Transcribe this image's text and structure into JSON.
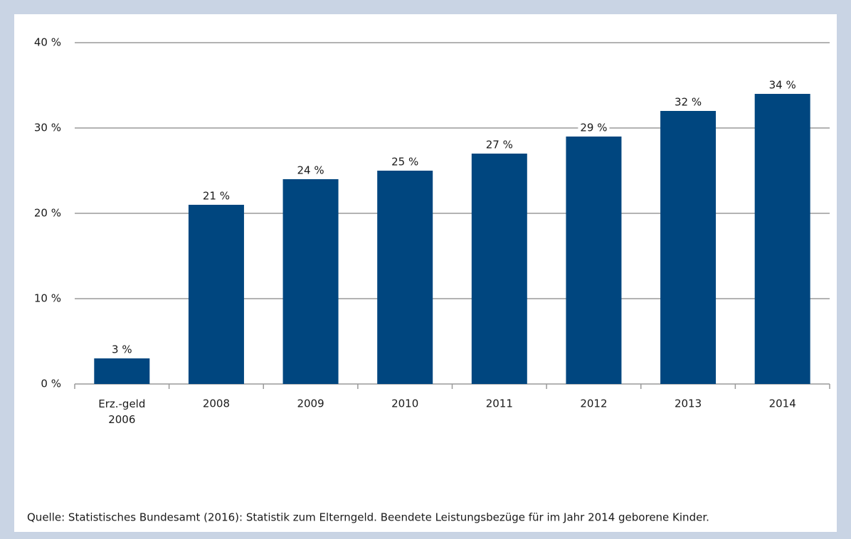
{
  "chart_data": {
    "type": "bar",
    "categories": [
      "Erz.-geld 2006",
      "2008",
      "2009",
      "2010",
      "2011",
      "2012",
      "2013",
      "2014"
    ],
    "values": [
      3,
      21,
      24,
      25,
      27,
      29,
      32,
      34
    ],
    "value_labels": [
      "3 %",
      "21 %",
      "24 %",
      "25 %",
      "27 %",
      "29 %",
      "32 %",
      "34 %"
    ],
    "color": "#00467f",
    "ylim": [
      0,
      40
    ],
    "yticks": [
      {
        "value": 0,
        "label": "0 %"
      },
      {
        "value": 10,
        "label": "10 %"
      },
      {
        "value": 20,
        "label": "20 %"
      },
      {
        "value": 30,
        "label": "30 %"
      },
      {
        "value": 40,
        "label": "40 %"
      }
    ],
    "grid": true,
    "source": "Quelle: Statistisches Bundesamt (2016): Statistik zum Elterngeld. Beendete Leistungsbezüge für im Jahr 2014 geborene Kinder."
  }
}
